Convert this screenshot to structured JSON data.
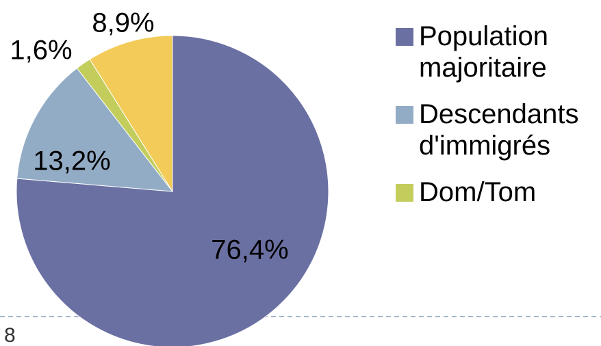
{
  "chart_data": {
    "type": "pie",
    "categories": [
      "Population majoritaire",
      "Descendants d'immigrés",
      "Dom/Tom",
      null
    ],
    "values": [
      76.4,
      13.2,
      1.6,
      8.9
    ],
    "value_labels": [
      "76,4%",
      "13,2%",
      "1,6%",
      "8,9%"
    ],
    "colors": [
      "#6b70a3",
      "#93acc6",
      "#c3cd5c",
      "#f2cb58"
    ]
  },
  "page_number": "8"
}
